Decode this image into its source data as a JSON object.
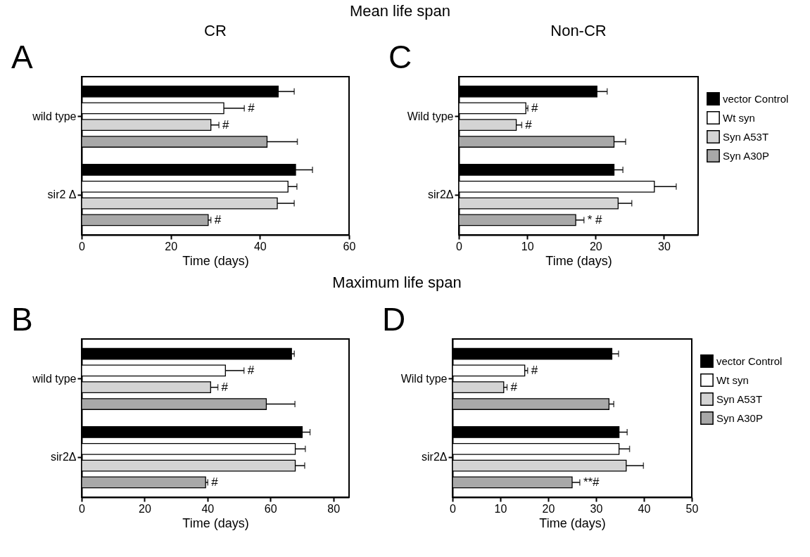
{
  "chart_data": [
    {
      "type": "bar",
      "orientation": "horizontal",
      "title": "CR",
      "xlabel": "Time (days)",
      "categories": [
        "wild type",
        "sir2 Δ"
      ],
      "xlim": [
        0,
        60
      ],
      "xticks": [
        0,
        20,
        40,
        60
      ],
      "grid": false,
      "legend": false,
      "series": [
        {
          "color": "#000000",
          "values": [
            44.1,
            48.0
          ],
          "errors": [
            [
              44.1,
              47.7
            ],
            [
              48.0,
              51.8
            ]
          ]
        },
        {
          "color": "#ffffff",
          "values": [
            31.9,
            46.3
          ],
          "errors": [
            [
              31.9,
              36.5
            ],
            [
              46.3,
              48.3
            ]
          ],
          "value_labels": [
            "#",
            null
          ]
        },
        {
          "color": "#d4d4d4",
          "values": [
            29.0,
            43.9
          ],
          "errors": [
            [
              29.0,
              30.8
            ],
            [
              43.9,
              47.7
            ]
          ],
          "value_labels": [
            "#",
            null
          ]
        },
        {
          "color": "#a8a8a8",
          "values": [
            41.6,
            28.4
          ],
          "errors": [
            [
              41.6,
              48.4
            ],
            [
              28.4,
              29.0
            ]
          ],
          "value_labels": [
            null,
            "#"
          ]
        }
      ],
      "annotations": [
        "A",
        "Mean life span"
      ]
    },
    {
      "type": "bar",
      "orientation": "horizontal",
      "title": "Non-CR",
      "xlabel": "Time (days)",
      "categories": [
        "Wild type",
        "sir2Δ"
      ],
      "xlim": [
        0,
        35
      ],
      "xticks": [
        0,
        10,
        20,
        30
      ],
      "grid": false,
      "legend": "right",
      "series": [
        {
          "name": "vector Control",
          "color": "#000000",
          "values": [
            20.2,
            22.7
          ],
          "errors": [
            [
              20.2,
              21.7
            ],
            [
              22.7,
              24.0
            ]
          ]
        },
        {
          "name": "Wt syn",
          "color": "#ffffff",
          "values": [
            9.8,
            28.6
          ],
          "errors": [
            [
              9.8,
              10.1
            ],
            [
              28.6,
              31.8
            ]
          ],
          "value_labels": [
            "#",
            null
          ]
        },
        {
          "name": "Syn A53T",
          "color": "#d4d4d4",
          "values": [
            8.4,
            23.3
          ],
          "errors": [
            [
              8.4,
              9.2
            ],
            [
              23.3,
              25.3
            ]
          ],
          "value_labels": [
            "#",
            null
          ]
        },
        {
          "name": "Syn A30P",
          "color": "#a8a8a8",
          "values": [
            22.7,
            17.1
          ],
          "errors": [
            [
              22.7,
              24.4
            ],
            [
              17.1,
              18.3
            ]
          ],
          "value_labels": [
            null,
            "* #"
          ]
        }
      ],
      "annotations": [
        "C"
      ]
    },
    {
      "type": "bar",
      "orientation": "horizontal",
      "xlabel": "Time (days)",
      "categories": [
        "wild type",
        "sir2Δ"
      ],
      "xlim": [
        0,
        85
      ],
      "xticks": [
        0,
        20,
        40,
        60,
        80
      ],
      "grid": false,
      "legend": false,
      "series": [
        {
          "color": "#000000",
          "values": [
            66.7,
            70.1
          ],
          "errors": [
            [
              66.7,
              67.6
            ],
            [
              70.1,
              72.6
            ]
          ]
        },
        {
          "color": "#ffffff",
          "values": [
            45.7,
            67.9
          ],
          "errors": [
            [
              45.7,
              51.6
            ],
            [
              67.9,
              71.1
            ]
          ],
          "value_labels": [
            "#",
            null
          ]
        },
        {
          "color": "#d4d4d4",
          "values": [
            41.0,
            67.9
          ],
          "errors": [
            [
              41.0,
              43.3
            ],
            [
              67.9,
              70.9
            ]
          ],
          "value_labels": [
            "#",
            null
          ]
        },
        {
          "color": "#a8a8a8",
          "values": [
            58.7,
            39.4
          ],
          "errors": [
            [
              58.7,
              67.8
            ],
            [
              39.4,
              40.1
            ]
          ],
          "value_labels": [
            null,
            "#"
          ]
        }
      ],
      "annotations": [
        "B",
        "Maximum life span"
      ]
    },
    {
      "type": "bar",
      "orientation": "horizontal",
      "xlabel": "Time (days)",
      "categories": [
        "Wild type",
        "sir2Δ"
      ],
      "xlim": [
        0,
        50
      ],
      "xticks": [
        0,
        10,
        20,
        30,
        40,
        50
      ],
      "grid": false,
      "legend": "right",
      "series": [
        {
          "name": "vector Control",
          "color": "#000000",
          "values": [
            33.3,
            34.8
          ],
          "errors": [
            [
              33.3,
              34.7
            ],
            [
              34.8,
              36.5
            ]
          ]
        },
        {
          "name": "Wt syn",
          "color": "#ffffff",
          "values": [
            15.1,
            34.8
          ],
          "errors": [
            [
              15.1,
              15.7
            ],
            [
              34.8,
              37.0
            ]
          ],
          "value_labels": [
            "#",
            null
          ]
        },
        {
          "name": "Syn A53T",
          "color": "#d4d4d4",
          "values": [
            10.7,
            36.3
          ],
          "errors": [
            [
              10.7,
              11.4
            ],
            [
              36.3,
              39.9
            ]
          ],
          "value_labels": [
            "#",
            null
          ]
        },
        {
          "name": "Syn A30P",
          "color": "#a8a8a8",
          "values": [
            32.7,
            25.0
          ],
          "errors": [
            [
              32.7,
              33.7
            ],
            [
              25.0,
              26.6
            ]
          ],
          "value_labels": [
            null,
            "**#"
          ]
        }
      ],
      "annotations": [
        "D"
      ]
    }
  ]
}
